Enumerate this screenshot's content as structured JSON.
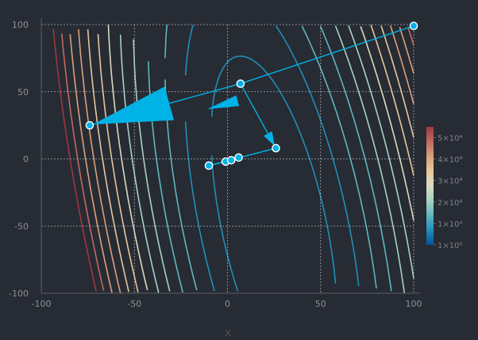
{
  "chart_data": {
    "type": "line",
    "title": "",
    "xlabel": "x",
    "ylabel": "",
    "xlim": [
      -100,
      100
    ],
    "ylim": [
      -100,
      100
    ],
    "x_ticks": [
      -100,
      -50,
      0,
      50,
      100
    ],
    "y_ticks": [
      -100,
      -50,
      0,
      50,
      100
    ],
    "x_tick_labels": [
      "-100",
      "-50",
      "0",
      "50",
      "100"
    ],
    "y_tick_labels": [
      "-100",
      "-50",
      "0",
      "50",
      "100"
    ],
    "grid": true,
    "contour": {
      "function_note": "",
      "levels": [
        4000,
        8000,
        12000,
        16000,
        20000,
        24000,
        28000,
        32000,
        36000,
        40000,
        44000,
        48000,
        52000
      ],
      "colorscale": [
        "#08519c",
        "#1f8fb8",
        "#5fb7bd",
        "#a6d3c2",
        "#d8dcc0",
        "#e6c89c",
        "#dba07a",
        "#c06a5e",
        "#9c3844"
      ],
      "colorbar": {
        "min": 1,
        "max": 55000,
        "ticks": [
          1,
          10000,
          20000,
          30000,
          40000,
          50000
        ],
        "tick_labels": [
          "1×10⁰",
          "1×10⁴",
          "2×10⁴",
          "3×10⁴",
          "4×10⁴",
          "5×10⁴"
        ]
      }
    },
    "path": {
      "name": "",
      "color": "#00b2e6",
      "points": [
        [
          100,
          99
        ],
        [
          7,
          56
        ],
        [
          -74,
          25
        ],
        [
          26,
          8
        ],
        [
          -10,
          -5
        ],
        [
          -1,
          -2
        ],
        [
          2,
          -1
        ],
        [
          6,
          1
        ]
      ],
      "arrow_segments": [
        [
          0,
          1
        ],
        [
          1,
          2
        ],
        [
          1,
          3
        ]
      ]
    }
  }
}
